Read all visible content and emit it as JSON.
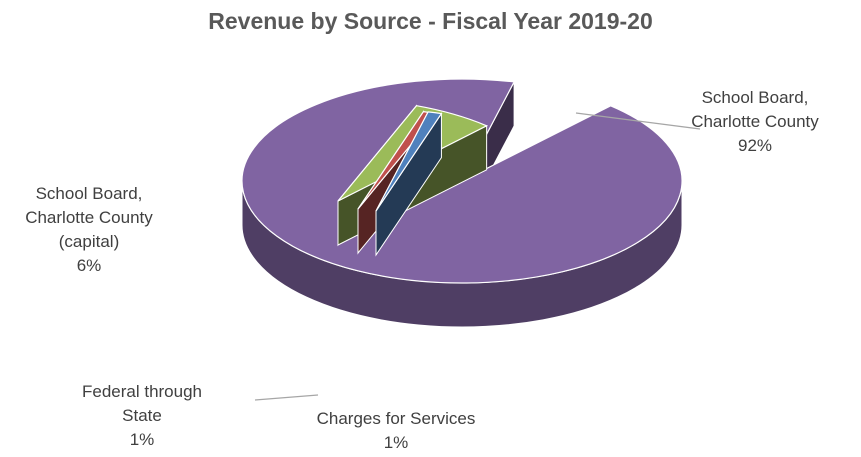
{
  "chart_data": {
    "type": "pie",
    "title": "Revenue by Source - Fiscal Year 2019-20",
    "slices": [
      {
        "label_lines": [
          "School Board,",
          "Charlotte County"
        ],
        "value": 92,
        "pct_label": "92%",
        "color": "#8064a2"
      },
      {
        "label_lines": [
          "Charges for Services"
        ],
        "value": 1,
        "pct_label": "1%",
        "color": "#4f81bd"
      },
      {
        "label_lines": [
          "Federal through",
          "State"
        ],
        "value": 1,
        "pct_label": "1%",
        "color": "#c0504d"
      },
      {
        "label_lines": [
          "School Board,",
          "Charlotte County",
          "(capital)"
        ],
        "value": 6,
        "pct_label": "6%",
        "color": "#9bbb59"
      }
    ]
  }
}
